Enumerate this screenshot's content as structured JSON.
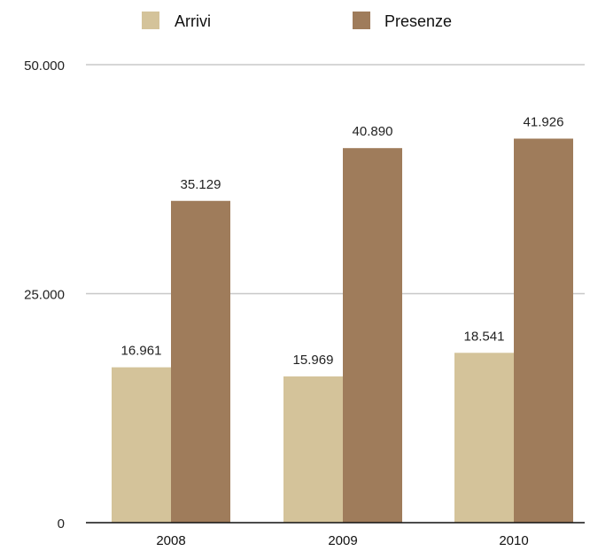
{
  "chart_data": {
    "type": "bar",
    "categories": [
      "2008",
      "2009",
      "2010"
    ],
    "series": [
      {
        "name": "Arrivi",
        "values": [
          16961,
          15969,
          18541
        ],
        "labels": [
          "16.961",
          "15.969",
          "18.541"
        ],
        "color": "#d4c39a"
      },
      {
        "name": "Presenze",
        "values": [
          35129,
          40890,
          41926
        ],
        "labels": [
          "35.129",
          "40.890",
          "41.926"
        ],
        "color": "#9f7c5b"
      }
    ],
    "ylim": [
      0,
      50000
    ],
    "yticks": [
      0,
      25000,
      50000
    ],
    "ytick_labels": [
      "0",
      "25.000",
      "50.000"
    ],
    "grid": true,
    "gridline_color": "#c8c8c8",
    "legend_position": "top"
  }
}
